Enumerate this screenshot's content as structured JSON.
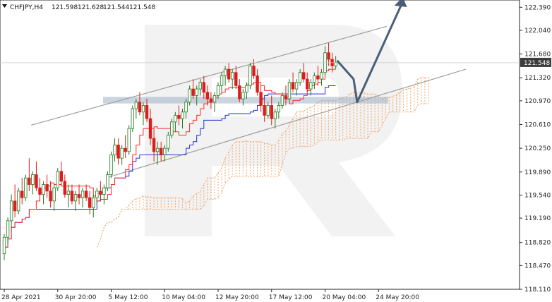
{
  "header": {
    "symbol": "CHFJPY,H4",
    "open": "121.598",
    "high": "121.628",
    "low": "121.544",
    "close": "121.548"
  },
  "chart_data": {
    "type": "candlestick",
    "symbol": "CHFJPY",
    "timeframe": "H4",
    "last_price": "121.548",
    "ylim": [
      118.11,
      122.5
    ],
    "y_ticks": [
      "122.390",
      "122.040",
      "121.680",
      "121.320",
      "120.970",
      "120.610",
      "120.250",
      "119.890",
      "119.540",
      "119.190",
      "118.820",
      "118.470",
      "118.110"
    ],
    "x_ticks": [
      "28 Apr 2021",
      "30 Apr 20:00",
      "5 May 12:00",
      "10 May 04:00",
      "12 May 20:00",
      "17 May 12:00",
      "20 May 04:00",
      "24 May 20:00"
    ],
    "x_tick_bar_index": [
      0,
      15,
      30,
      45,
      60,
      75,
      90,
      105
    ],
    "colors": {
      "bull": "#1e7a1e",
      "bear": "#e01b1b",
      "tenkan": "#ff2a2a",
      "kijun": "#1f2fd6",
      "cloud": "#f2a56b",
      "channel": "#9e9e9e",
      "arrow": "#4a5f77",
      "zone": "#9fb2c7",
      "price_box": "#3c3c3c"
    },
    "candles": [
      [
        118.65,
        118.95,
        118.55,
        118.9
      ],
      [
        118.9,
        119.2,
        118.8,
        119.15
      ],
      [
        119.15,
        119.55,
        119.05,
        119.45
      ],
      [
        119.45,
        119.7,
        119.2,
        119.3
      ],
      [
        119.3,
        119.65,
        119.25,
        119.6
      ],
      [
        119.6,
        119.8,
        119.4,
        119.5
      ],
      [
        119.5,
        119.85,
        119.45,
        119.8
      ],
      [
        119.8,
        120.1,
        119.6,
        119.7
      ],
      [
        119.7,
        119.9,
        119.55,
        119.85
      ],
      [
        119.85,
        120.05,
        119.6,
        119.65
      ],
      [
        119.65,
        119.8,
        119.45,
        119.55
      ],
      [
        119.55,
        119.75,
        119.4,
        119.7
      ],
      [
        119.7,
        119.85,
        119.5,
        119.6
      ],
      [
        119.6,
        119.75,
        119.35,
        119.45
      ],
      [
        119.45,
        119.7,
        119.3,
        119.65
      ],
      [
        119.65,
        119.95,
        119.6,
        119.9
      ],
      [
        119.9,
        120.05,
        119.7,
        119.75
      ],
      [
        119.75,
        119.85,
        119.5,
        119.55
      ],
      [
        119.55,
        119.7,
        119.35,
        119.6
      ],
      [
        119.6,
        119.7,
        119.4,
        119.45
      ],
      [
        119.45,
        119.6,
        119.3,
        119.55
      ],
      [
        119.55,
        119.7,
        119.4,
        119.5
      ],
      [
        119.5,
        119.65,
        119.35,
        119.6
      ],
      [
        119.6,
        119.7,
        119.45,
        119.5
      ],
      [
        119.5,
        119.6,
        119.25,
        119.35
      ],
      [
        119.35,
        119.55,
        119.2,
        119.5
      ],
      [
        119.5,
        119.65,
        119.4,
        119.6
      ],
      [
        119.6,
        119.75,
        119.45,
        119.55
      ],
      [
        119.55,
        119.7,
        119.4,
        119.65
      ],
      [
        119.65,
        119.9,
        119.6,
        119.85
      ],
      [
        119.85,
        120.2,
        119.8,
        120.15
      ],
      [
        120.15,
        120.4,
        120.05,
        120.3
      ],
      [
        120.3,
        120.4,
        120.0,
        120.1
      ],
      [
        120.1,
        120.3,
        120.0,
        120.25
      ],
      [
        120.25,
        120.45,
        120.1,
        120.2
      ],
      [
        120.2,
        120.6,
        120.15,
        120.55
      ],
      [
        120.55,
        120.9,
        120.5,
        120.85
      ],
      [
        120.85,
        121.0,
        120.7,
        120.95
      ],
      [
        120.95,
        121.1,
        120.75,
        120.8
      ],
      [
        120.8,
        120.95,
        120.6,
        120.9
      ],
      [
        120.9,
        121.0,
        120.65,
        120.7
      ],
      [
        120.7,
        120.85,
        120.3,
        120.4
      ],
      [
        120.4,
        120.55,
        120.05,
        120.2
      ],
      [
        120.2,
        120.35,
        120.0,
        120.25
      ],
      [
        120.25,
        120.35,
        120.05,
        120.15
      ],
      [
        120.15,
        120.3,
        120.05,
        120.25
      ],
      [
        120.25,
        120.5,
        120.2,
        120.45
      ],
      [
        120.45,
        120.7,
        120.4,
        120.65
      ],
      [
        120.65,
        120.8,
        120.5,
        120.75
      ],
      [
        120.75,
        120.9,
        120.6,
        120.7
      ],
      [
        120.7,
        120.85,
        120.55,
        120.8
      ],
      [
        120.8,
        121.0,
        120.7,
        120.95
      ],
      [
        120.95,
        121.2,
        120.9,
        121.15
      ],
      [
        121.15,
        121.3,
        121.0,
        121.05
      ],
      [
        121.05,
        121.2,
        120.9,
        121.15
      ],
      [
        121.15,
        121.3,
        121.05,
        121.25
      ],
      [
        121.25,
        121.35,
        121.0,
        121.1
      ],
      [
        121.1,
        121.2,
        120.9,
        121.0
      ],
      [
        121.0,
        121.1,
        120.85,
        120.95
      ],
      [
        120.95,
        121.1,
        120.8,
        121.05
      ],
      [
        121.05,
        121.25,
        121.0,
        121.2
      ],
      [
        121.2,
        121.4,
        121.1,
        121.35
      ],
      [
        121.35,
        121.5,
        121.2,
        121.45
      ],
      [
        121.45,
        121.55,
        121.25,
        121.3
      ],
      [
        121.3,
        121.45,
        121.15,
        121.4
      ],
      [
        121.4,
        121.5,
        121.15,
        121.2
      ],
      [
        121.2,
        121.3,
        120.95,
        121.0
      ],
      [
        121.0,
        121.15,
        120.9,
        121.1
      ],
      [
        121.1,
        121.25,
        121.0,
        121.2
      ],
      [
        121.2,
        121.55,
        121.15,
        121.5
      ],
      [
        121.5,
        121.6,
        121.3,
        121.35
      ],
      [
        121.35,
        121.45,
        121.05,
        121.1
      ],
      [
        121.1,
        121.2,
        120.8,
        120.9
      ],
      [
        120.9,
        121.0,
        120.65,
        120.75
      ],
      [
        120.75,
        120.95,
        120.7,
        120.9
      ],
      [
        120.9,
        121.05,
        120.6,
        120.7
      ],
      [
        120.7,
        120.85,
        120.55,
        120.8
      ],
      [
        120.8,
        120.95,
        120.7,
        120.9
      ],
      [
        120.9,
        121.1,
        120.85,
        121.05
      ],
      [
        121.05,
        121.2,
        120.9,
        121.0
      ],
      [
        121.0,
        121.3,
        120.95,
        121.25
      ],
      [
        121.25,
        121.4,
        121.1,
        121.15
      ],
      [
        121.15,
        121.3,
        121.05,
        121.25
      ],
      [
        121.25,
        121.45,
        121.2,
        121.4
      ],
      [
        121.4,
        121.55,
        121.25,
        121.3
      ],
      [
        121.3,
        121.4,
        121.1,
        121.15
      ],
      [
        121.15,
        121.3,
        121.05,
        121.25
      ],
      [
        121.25,
        121.4,
        121.15,
        121.35
      ],
      [
        121.35,
        121.5,
        121.2,
        121.3
      ],
      [
        121.3,
        121.45,
        121.2,
        121.4
      ],
      [
        121.4,
        121.8,
        121.35,
        121.7
      ],
      [
        121.7,
        121.85,
        121.5,
        121.6
      ],
      [
        121.6,
        121.7,
        121.4,
        121.5
      ],
      [
        121.5,
        121.65,
        121.45,
        121.55
      ]
    ]
  }
}
